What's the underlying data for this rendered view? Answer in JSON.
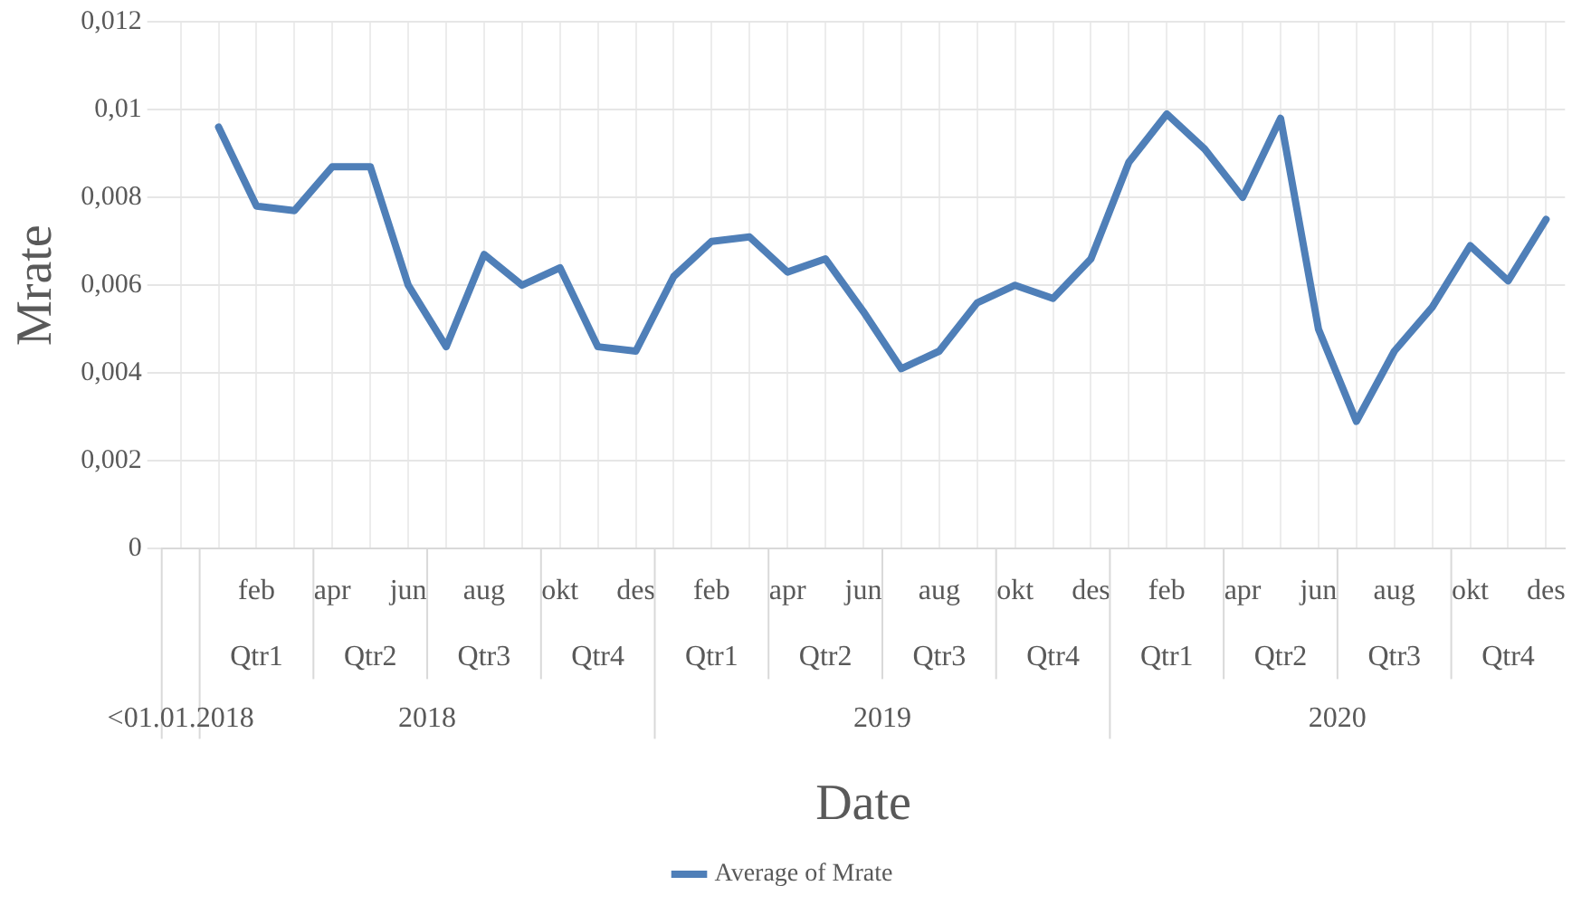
{
  "chart_data": {
    "type": "line",
    "xlabel": "Date",
    "ylabel": "Mrate",
    "categories": [
      null,
      null,
      "feb",
      null,
      "apr",
      null,
      "jun",
      null,
      "aug",
      null,
      "okt",
      null,
      "des",
      null,
      "feb",
      null,
      "apr",
      null,
      "jun",
      null,
      "aug",
      null,
      "okt",
      null,
      "des",
      null,
      "feb",
      null,
      "apr",
      null,
      "jun",
      null,
      "aug",
      null,
      "okt",
      null,
      "des"
    ],
    "series": [
      {
        "name": "Average of Mrate",
        "color": "#4f7fb8",
        "values": [
          null,
          0.0096,
          0.0078,
          0.0077,
          0.0087,
          0.0087,
          0.006,
          0.0046,
          0.0067,
          0.006,
          0.0064,
          0.0046,
          0.0045,
          0.0062,
          0.007,
          0.0071,
          0.0063,
          0.0066,
          0.0054,
          0.0041,
          0.0045,
          0.0056,
          0.006,
          0.0057,
          0.0066,
          0.0088,
          0.0099,
          0.0091,
          0.008,
          0.0098,
          0.005,
          0.0029,
          0.0045,
          0.0055,
          0.0069,
          0.0061,
          0.0075
        ]
      }
    ],
    "ylim": [
      0,
      0.012
    ],
    "yticks": [
      0,
      {
        "value": 0.002,
        "label": "0,002"
      },
      {
        "value": 0.004,
        "label": "0,004"
      },
      {
        "value": 0.006,
        "label": "0,006"
      },
      {
        "value": 0.008,
        "label": "0,008"
      },
      {
        "value": 0.01,
        "label": "0,01"
      },
      {
        "value": 0.012,
        "label": "0,012"
      }
    ],
    "annotations": [
      "<01.01.2018",
      "Qtr1",
      "Qtr2",
      "Qtr3",
      "Qtr4",
      "Qtr1",
      "Qtr2",
      "Qtr3",
      "Qtr4",
      "Qtr1",
      "Qtr2",
      "Qtr3",
      "Qtr4",
      "2018",
      "2019",
      "2020"
    ],
    "grid": true,
    "legend": "bottom",
    "marker": "none",
    "line_style": "solid"
  }
}
